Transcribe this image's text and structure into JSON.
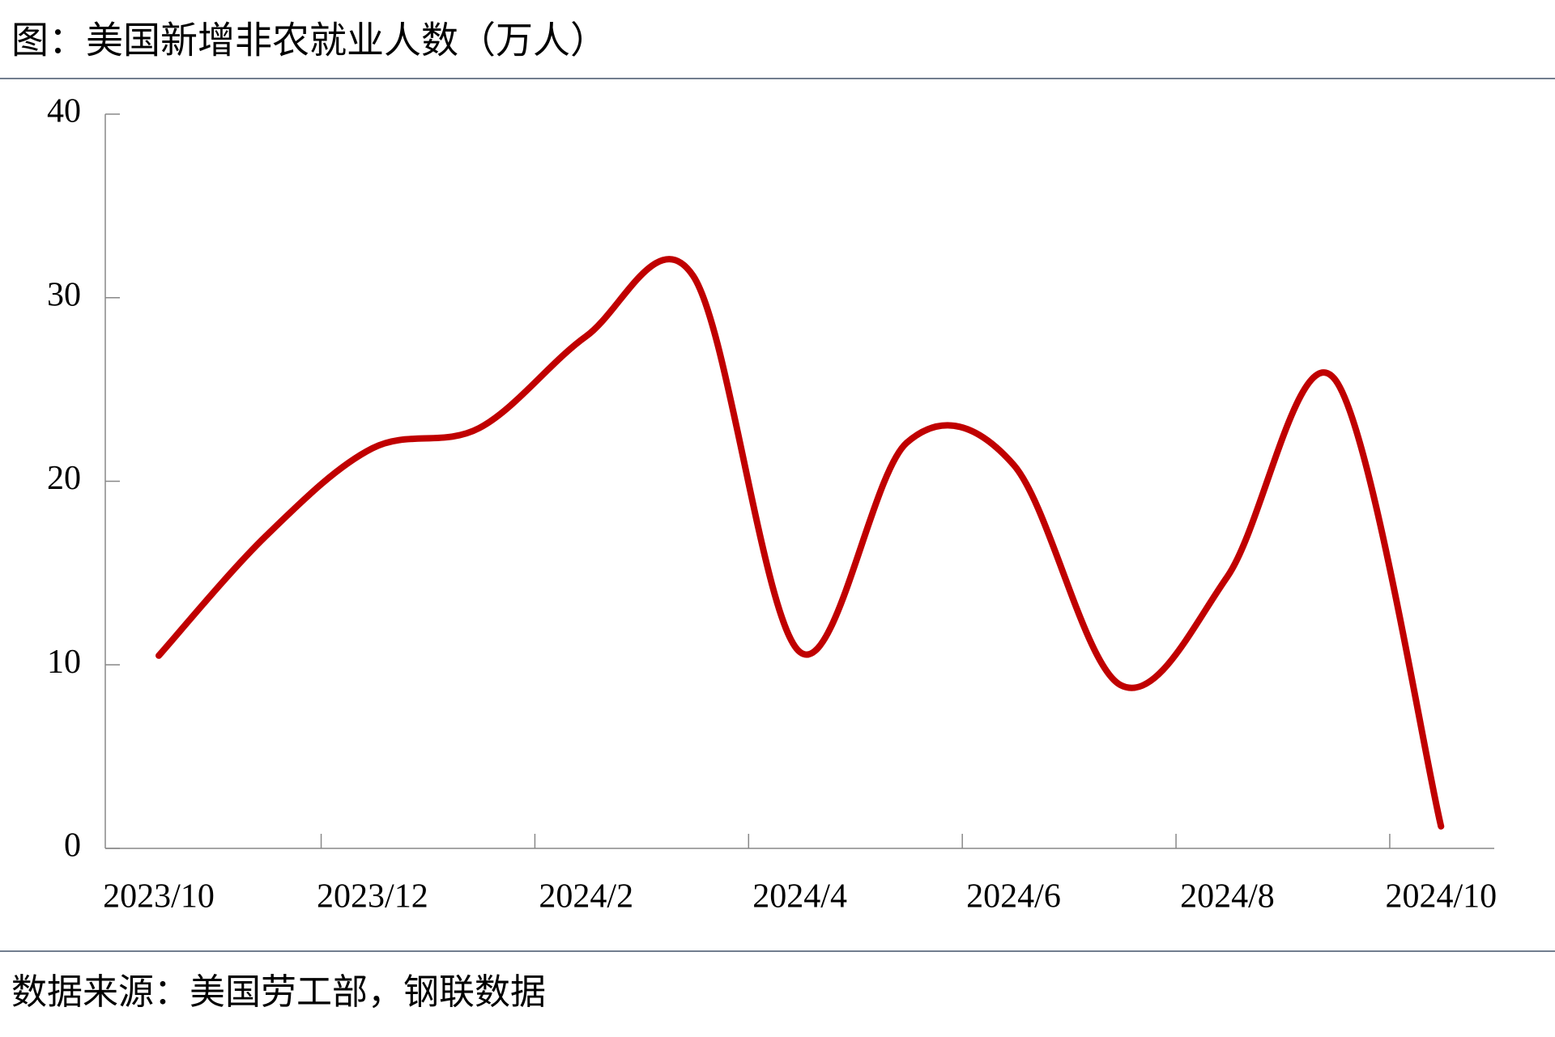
{
  "chart_data": {
    "type": "line",
    "title": "图：美国新增非农就业人数（万人）",
    "source": "数据来源：美国劳工部，钢联数据",
    "categories": [
      "2023/10",
      null,
      "2023/12",
      null,
      "2024/2",
      null,
      "2024/4",
      null,
      "2024/6",
      null,
      "2024/8",
      null,
      "2024/10"
    ],
    "series": [
      {
        "color": "#c00000",
        "values": [
          10.5,
          17,
          21.8,
          22.9,
          27.9,
          31.2,
          10.7,
          22.1,
          20.9,
          8.9,
          14.8,
          25.6,
          1.2
        ]
      }
    ],
    "ylim": [
      0,
      40
    ],
    "yticks": [
      0,
      10,
      20,
      30,
      40
    ],
    "grid": false
  }
}
